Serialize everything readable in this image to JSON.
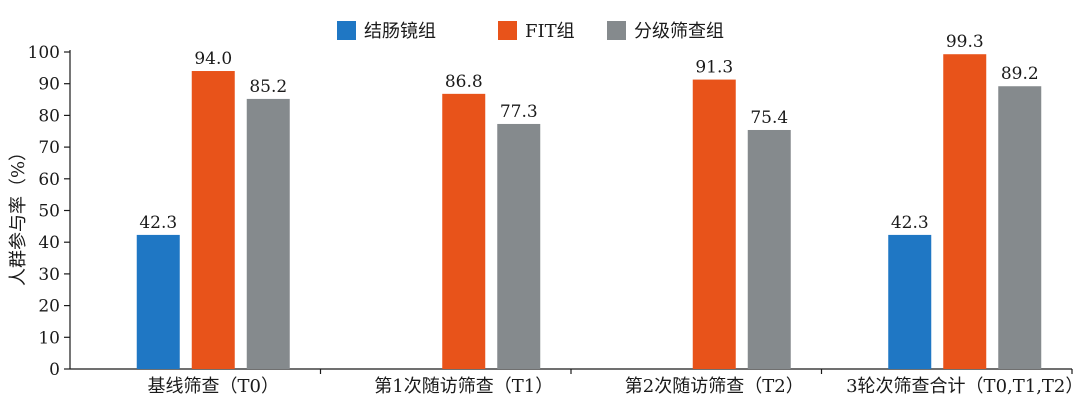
{
  "chart_data": {
    "type": "bar",
    "title": "",
    "xlabel": "",
    "ylabel": "人群参与率（%）",
    "ylim": [
      0,
      100
    ],
    "yticks": [
      0,
      10,
      20,
      30,
      40,
      50,
      60,
      70,
      80,
      90,
      100
    ],
    "categories": [
      "基线筛查（T0）",
      "第1次随访筛查（T1）",
      "第2次随访筛查（T2）",
      "3轮次筛查合计（T0,T1,T2）"
    ],
    "series": [
      {
        "name": "结肠镜组",
        "color": "#1f77c4",
        "values": [
          42.3,
          null,
          null,
          42.3
        ],
        "labels": [
          "42.3",
          null,
          null,
          "42.3"
        ]
      },
      {
        "name": "FIT组",
        "color": "#e8531a",
        "values": [
          94.0,
          86.8,
          91.3,
          99.3
        ],
        "labels": [
          "94.0",
          "86.8",
          "91.3",
          "99.3"
        ]
      },
      {
        "name": "分级筛查组",
        "color": "#858a8d",
        "values": [
          85.2,
          77.3,
          75.4,
          89.2
        ],
        "labels": [
          "85.2",
          "77.3",
          "75.4",
          "89.2"
        ]
      }
    ],
    "legend_position": "top-center",
    "grid": false
  }
}
